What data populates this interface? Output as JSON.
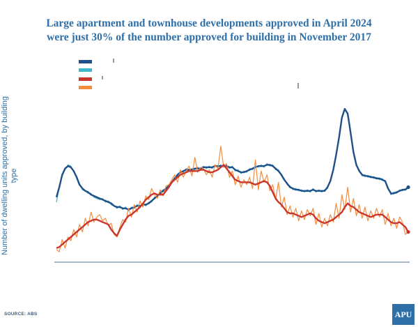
{
  "title_lines": [
    "Large apartment and townhouse developments approved in April 2024",
    "were just 30% of the number approved for building in November 2017"
  ],
  "source": "SOURCE: ABS",
  "logo_text": "APU",
  "colors": {
    "dark_blue": "#1f4f8a",
    "teal": "#3fb6c9",
    "red": "#c9362b",
    "orange": "#f58c3c",
    "baseline": "#8ea3b5",
    "title": "#2f6fa8"
  },
  "chart_data": {
    "type": "line",
    "title": "Large apartment and townhouse developments approved in April 2024 were just 30% of the number approved for building in November 2017",
    "ylabel": "Number of dwelling units approved, by building type",
    "xlabel": "",
    "series": [
      {
        "color": "#1f4f8a",
        "values": [
          50,
          58,
          68,
          73,
          75,
          74,
          71,
          66,
          60,
          57,
          55,
          54,
          52,
          51,
          50,
          49,
          48,
          47,
          46,
          45,
          43,
          42,
          42,
          41,
          41,
          40,
          41,
          42,
          43,
          43,
          44,
          44,
          45,
          47,
          49,
          51,
          53,
          55,
          57,
          59,
          62,
          65,
          68,
          70,
          71,
          72,
          72,
          72,
          73,
          73,
          73,
          74,
          74,
          74,
          74,
          75,
          75,
          75,
          75,
          75,
          74,
          74,
          72,
          71,
          70,
          70,
          71,
          72,
          73,
          74,
          75,
          75,
          75,
          76,
          76,
          75,
          73,
          71,
          68,
          64,
          61,
          58,
          57,
          56,
          56,
          55,
          55,
          55,
          55,
          56,
          55,
          55,
          55,
          55,
          58,
          63,
          72,
          84,
          98,
          114,
          121,
          117,
          102,
          86,
          76,
          71,
          68,
          67,
          67,
          66,
          66,
          65,
          65,
          64,
          63,
          57,
          53,
          53,
          54,
          55,
          56,
          56,
          58
        ]
      },
      {
        "color": "#3fb6c9",
        "values": [
          46,
          58,
          67,
          72,
          76,
          75,
          70,
          67,
          61,
          56,
          55,
          53,
          53,
          50,
          49,
          48,
          49,
          46,
          47,
          44,
          43,
          41,
          43,
          40,
          42,
          39,
          42,
          41,
          44,
          42,
          45,
          43,
          46,
          46,
          50,
          50,
          54,
          56,
          56,
          60,
          61,
          66,
          67,
          71,
          70,
          73,
          71,
          73,
          72,
          74,
          72,
          75,
          73,
          75,
          73,
          76,
          74,
          76,
          74,
          76,
          73,
          75,
          71,
          72,
          69,
          71,
          70,
          73,
          72,
          75,
          74,
          76,
          74,
          77,
          75,
          76,
          72,
          72,
          67,
          65,
          60,
          59,
          56,
          57,
          55,
          56,
          54,
          56,
          54,
          57,
          54,
          56,
          54,
          56,
          57,
          64,
          71,
          85,
          97,
          115,
          120,
          118,
          101,
          87,
          75,
          72,
          67,
          68,
          66,
          67,
          65,
          66,
          64,
          65,
          62,
          58,
          52,
          54,
          53,
          56,
          55,
          57,
          57
        ]
      },
      {
        "color": "#c9362b",
        "values": [
          9,
          10,
          12,
          14,
          16,
          18,
          20,
          22,
          24,
          26,
          28,
          30,
          31,
          32,
          32,
          31,
          30,
          29,
          28,
          24,
          21,
          19,
          24,
          28,
          32,
          35,
          36,
          38,
          40,
          42,
          45,
          48,
          50,
          52,
          53,
          52,
          52,
          52,
          55,
          58,
          62,
          64,
          66,
          68,
          69,
          70,
          71,
          71,
          71,
          71,
          72,
          72,
          71,
          70,
          70,
          71,
          72,
          74,
          76,
          73,
          70,
          67,
          64,
          63,
          62,
          62,
          62,
          62,
          61,
          60,
          61,
          62,
          63,
          62,
          59,
          54,
          49,
          46,
          44,
          41,
          38,
          37,
          37,
          36,
          35,
          34,
          35,
          36,
          37,
          36,
          33,
          31,
          30,
          29,
          30,
          31,
          32,
          34,
          36,
          38,
          42,
          45,
          43,
          42,
          40,
          38,
          37,
          36,
          35,
          34,
          35,
          36,
          36,
          36,
          34,
          32,
          30,
          29,
          29,
          30,
          28,
          26,
          22
        ]
      },
      {
        "color": "#f58c3c",
        "values": [
          8,
          6,
          16,
          9,
          18,
          15,
          24,
          18,
          28,
          22,
          33,
          27,
          38,
          30,
          34,
          36,
          31,
          33,
          27,
          29,
          20,
          18,
          26,
          32,
          30,
          41,
          34,
          44,
          38,
          47,
          42,
          51,
          48,
          57,
          52,
          49,
          56,
          51,
          59,
          60,
          64,
          68,
          62,
          72,
          66,
          71,
          75,
          67,
          82,
          70,
          74,
          73,
          68,
          72,
          66,
          76,
          73,
          91,
          74,
          77,
          66,
          71,
          60,
          67,
          58,
          64,
          60,
          66,
          57,
          80,
          56,
          71,
          62,
          68,
          55,
          60,
          48,
          62,
          42,
          50,
          36,
          43,
          34,
          41,
          31,
          39,
          32,
          40,
          35,
          41,
          28,
          37,
          26,
          33,
          27,
          36,
          30,
          45,
          33,
          52,
          40,
          58,
          38,
          49,
          35,
          44,
          33,
          42,
          31,
          39,
          33,
          41,
          34,
          40,
          28,
          37,
          27,
          33,
          25,
          34,
          30,
          20,
          22
        ]
      }
    ]
  }
}
